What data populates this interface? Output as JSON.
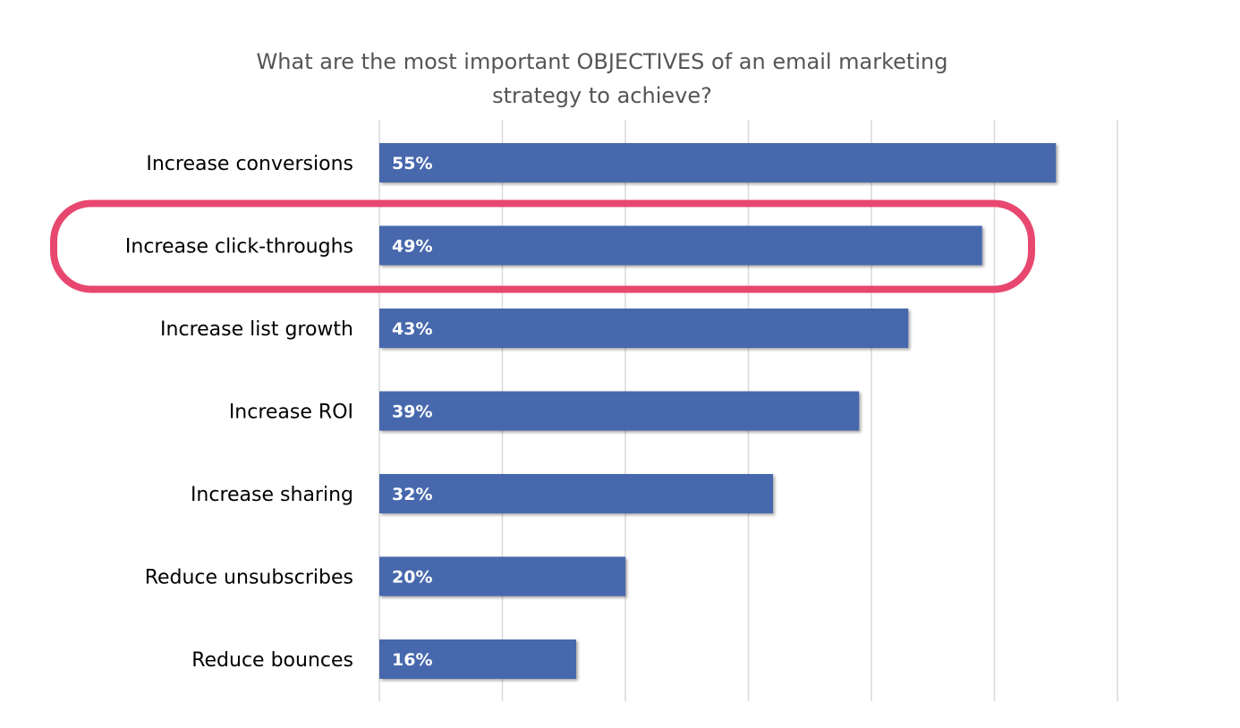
{
  "chart_data": {
    "type": "bar",
    "orientation": "horizontal",
    "title_lines": [
      "What are the most important OBJECTIVES of an email marketing",
      "strategy to achieve?"
    ],
    "categories": [
      "Increase conversions",
      "Increase click-throughs",
      "Increase list growth",
      "Increase ROI",
      "Increase sharing",
      "Reduce unsubscribes",
      "Reduce bounces"
    ],
    "values": [
      55,
      49,
      43,
      39,
      32,
      20,
      16
    ],
    "value_labels": [
      "55%",
      "49%",
      "43%",
      "39%",
      "32%",
      "20%",
      "16%"
    ],
    "xlim": [
      0,
      60
    ],
    "grid": true,
    "highlighted_category": "Increase click-throughs",
    "colors": {
      "bar": "#4668ad",
      "highlight": "#e8476f",
      "grid": "#d9d9d9",
      "label": "#000000",
      "value_label": "#ffffff",
      "title": "#555555"
    }
  }
}
